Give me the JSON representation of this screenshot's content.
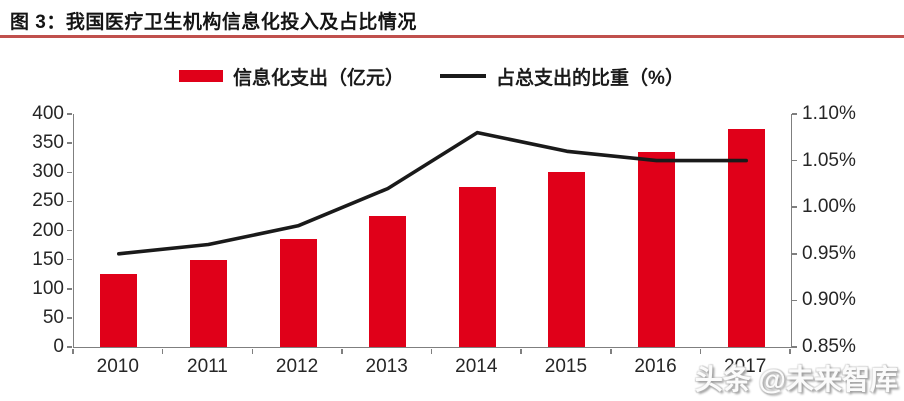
{
  "figure": {
    "title": "图 3：我国医疗卫生机构信息化投入及占比情况",
    "watermark": "头条 @未来智库"
  },
  "legend": {
    "items": [
      {
        "label": "信息化支出（亿元）",
        "swatch": "bar-swatch",
        "color": "#e00019"
      },
      {
        "label": "占总支出的比重（%）",
        "swatch": "line-swatch",
        "color": "#1a1a1a"
      }
    ]
  },
  "colors": {
    "bar_red": "#e00019",
    "line_black": "#1a1a1a",
    "title_rule_red": "#c0504d",
    "axis_gray": "#7f7f7f"
  },
  "chart_data": {
    "type": "bar",
    "subtype": "bar+line combo, dual y-axes",
    "title": "图 3：我国医疗卫生机构信息化投入及占比情况",
    "categories": [
      "2010",
      "2011",
      "2012",
      "2013",
      "2014",
      "2015",
      "2016",
      "2017"
    ],
    "series": [
      {
        "name": "信息化支出（亿元）",
        "type": "bar",
        "axis": "left",
        "color": "#e00019",
        "values": [
          125,
          150,
          185,
          225,
          275,
          300,
          335,
          375
        ]
      },
      {
        "name": "占总支出的比重（%）",
        "type": "line",
        "axis": "right",
        "color": "#1a1a1a",
        "values": [
          0.95,
          0.96,
          0.98,
          1.02,
          1.08,
          1.06,
          1.05,
          1.05
        ]
      }
    ],
    "left_axis": {
      "min": 0,
      "max": 400,
      "step": 50,
      "tick_labels": [
        "0",
        "50",
        "100",
        "150",
        "200",
        "250",
        "300",
        "350",
        "400"
      ]
    },
    "right_axis": {
      "min": 0.85,
      "max": 1.1,
      "step": 0.05,
      "tick_labels": [
        "0.85%",
        "0.90%",
        "0.95%",
        "1.00%",
        "1.05%",
        "1.10%"
      ]
    },
    "grid": false,
    "legend_position": "top-center"
  }
}
